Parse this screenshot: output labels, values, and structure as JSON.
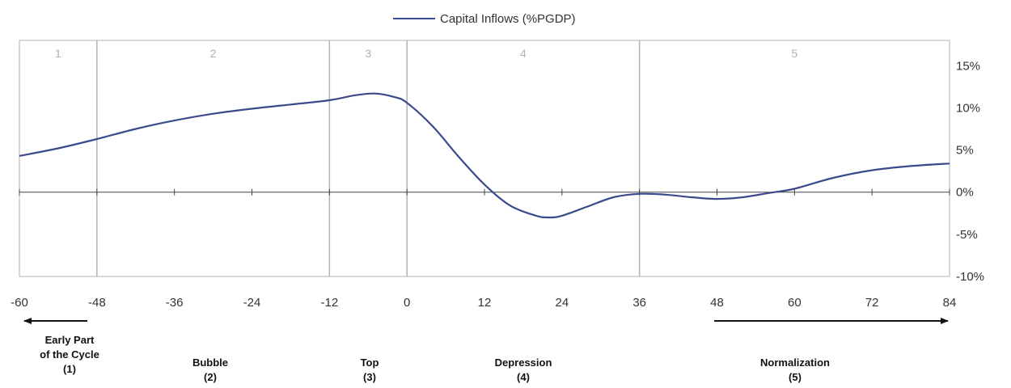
{
  "chart_data": {
    "type": "line",
    "legend": {
      "label": "Capital Inflows (%PGDP)",
      "position": "top-center"
    },
    "xlim": [
      -60,
      84
    ],
    "ylim": [
      -10,
      18
    ],
    "x_ticks": [
      "-60",
      "-48",
      "-36",
      "-24",
      "-12",
      "0",
      "12",
      "24",
      "36",
      "48",
      "60",
      "72",
      "84"
    ],
    "y_ticks": [
      {
        "value": 15,
        "label": "15%"
      },
      {
        "value": 10,
        "label": "10%"
      },
      {
        "value": 5,
        "label": "5%"
      },
      {
        "value": 0,
        "label": "0%"
      },
      {
        "value": -5,
        "label": "-5%"
      },
      {
        "value": -10,
        "label": "-10%"
      }
    ],
    "phase_boundaries": [
      -48,
      -12,
      0,
      36
    ],
    "phases": [
      {
        "label": "1",
        "x": -54
      },
      {
        "label": "2",
        "x": -30
      },
      {
        "label": "3",
        "x": -6
      },
      {
        "label": "4",
        "x": 18
      },
      {
        "label": "5",
        "x": 60
      }
    ],
    "series": [
      {
        "name": "Capital Inflows (%PGDP)",
        "color": "#3b4a8c",
        "x": [
          -60,
          -54,
          -48,
          -42,
          -36,
          -30,
          -24,
          -18,
          -12,
          -8,
          -5,
          -2,
          0,
          4,
          8,
          12,
          16,
          20,
          22,
          24,
          28,
          32,
          36,
          40,
          44,
          48,
          52,
          56,
          60,
          66,
          72,
          78,
          84
        ],
        "y": [
          4.3,
          5.2,
          6.3,
          7.5,
          8.5,
          9.3,
          9.9,
          10.4,
          10.9,
          11.5,
          11.7,
          11.3,
          10.6,
          7.8,
          4.2,
          0.9,
          -1.6,
          -2.8,
          -3.0,
          -2.8,
          -1.7,
          -0.6,
          -0.2,
          -0.3,
          -0.6,
          -0.8,
          -0.6,
          -0.1,
          0.4,
          1.7,
          2.6,
          3.1,
          3.4
        ]
      }
    ]
  },
  "stages": {
    "early": {
      "line1": "Early Part",
      "line2": "of the Cycle",
      "line3": "(1)"
    },
    "bubble": {
      "line1": "Bubble",
      "line2": "(2)"
    },
    "top": {
      "line1": "Top",
      "line2": "(3)"
    },
    "depression": {
      "line1": "Depression",
      "line2": "(4)"
    },
    "normalization": {
      "line1": "Normalization",
      "line2": "(5)"
    }
  }
}
